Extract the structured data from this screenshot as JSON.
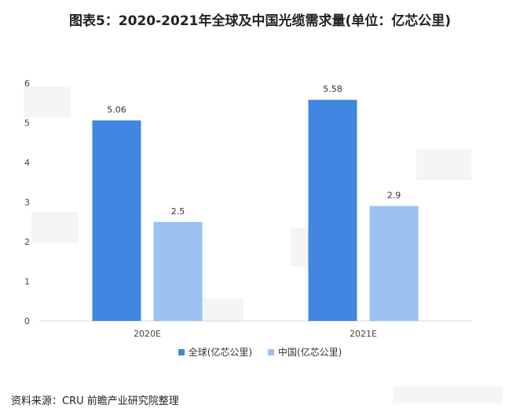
{
  "title": "图表5：2020-2021年全球及中国光缆需求量(单位：亿芯公里)",
  "source": "资料来源：CRU 前瞻产业研究院整理",
  "colors": {
    "global": "#4186E0",
    "china": "#9CC1F2",
    "axis": "#d9d9d9",
    "grid": "#ffffff"
  },
  "chart_data": {
    "type": "bar",
    "categories": [
      "2020E",
      "2021E"
    ],
    "series": [
      {
        "name": "全球(亿芯公里)",
        "values": [
          5.06,
          5.58
        ]
      },
      {
        "name": "中国(亿芯公里)",
        "values": [
          2.5,
          2.9
        ]
      }
    ],
    "data_labels": [
      [
        "5.06",
        "5.58"
      ],
      [
        "2.5",
        "2.9"
      ]
    ],
    "yticks": [
      "0",
      "1",
      "2",
      "3",
      "4",
      "5",
      "6"
    ],
    "ylim": [
      0,
      6
    ],
    "grid": false,
    "legend": "bottom"
  }
}
